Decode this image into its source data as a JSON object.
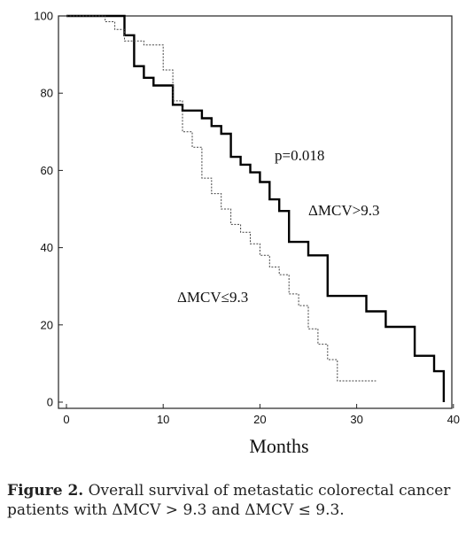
{
  "chart_data": {
    "type": "line",
    "subtype": "kaplan-meier step",
    "xlabel": "Months",
    "ylabel": "",
    "xlim": [
      0,
      40
    ],
    "ylim": [
      0,
      100
    ],
    "x_ticks": [
      0,
      10,
      20,
      30,
      40
    ],
    "y_ticks": [
      0,
      20,
      40,
      60,
      80,
      100
    ],
    "grid": false,
    "annotations": {
      "pvalue": "p=0.018",
      "high_label": "ΔMCV>9.3",
      "low_label": "ΔMCV≤9.3"
    },
    "series": [
      {
        "key": "high",
        "line_style": "solid-thick",
        "color": "#000000",
        "steps": [
          [
            0,
            100
          ],
          [
            6,
            95
          ],
          [
            7,
            87
          ],
          [
            8,
            84
          ],
          [
            9,
            82
          ],
          [
            11,
            77
          ],
          [
            12,
            75.5
          ],
          [
            14,
            73.5
          ],
          [
            15,
            71.5
          ],
          [
            16,
            69.5
          ],
          [
            17,
            63.5
          ],
          [
            18,
            61.5
          ],
          [
            19,
            59.5
          ],
          [
            20,
            57
          ],
          [
            21,
            52.5
          ],
          [
            22,
            49.5
          ],
          [
            23,
            41.5
          ],
          [
            25,
            38
          ],
          [
            27,
            27.5
          ],
          [
            31,
            23.5
          ],
          [
            33,
            19.5
          ],
          [
            36,
            12
          ],
          [
            38,
            8
          ],
          [
            39,
            0
          ]
        ],
        "end_x": 39
      },
      {
        "key": "low",
        "line_style": "dotted-thin",
        "color": "#444444",
        "steps": [
          [
            0,
            100
          ],
          [
            4,
            98.5
          ],
          [
            5,
            96.5
          ],
          [
            6,
            93.5
          ],
          [
            8,
            92.5
          ],
          [
            10,
            86
          ],
          [
            11,
            78
          ],
          [
            12,
            70
          ],
          [
            13,
            66
          ],
          [
            14,
            58
          ],
          [
            15,
            54
          ],
          [
            16,
            50
          ],
          [
            17,
            46
          ],
          [
            18,
            44
          ],
          [
            19,
            41
          ],
          [
            20,
            38
          ],
          [
            21,
            35
          ],
          [
            22,
            33
          ],
          [
            23,
            28
          ],
          [
            24,
            25
          ],
          [
            25,
            19
          ],
          [
            26,
            15
          ],
          [
            27,
            11
          ],
          [
            28,
            5.5
          ]
        ],
        "end_x": 32
      }
    ]
  },
  "caption": {
    "label": "Figure 2.",
    "text": " Overall survival of metastatic colorectal cancer patients with ΔMCV > 9.3 and ΔMCV ≤ 9.3."
  }
}
